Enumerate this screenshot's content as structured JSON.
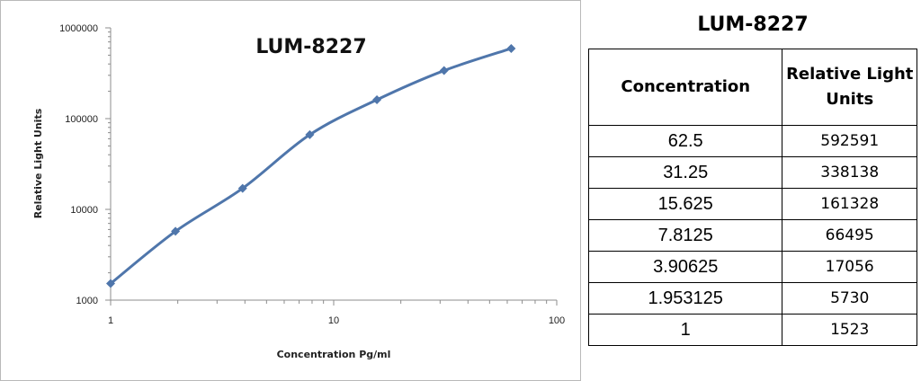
{
  "chart_data": {
    "type": "line",
    "title": "LUM-8227",
    "xlabel": "Concentration Pg/ml",
    "ylabel": "Relative Light Units",
    "x_scale": "log",
    "y_scale": "log",
    "xlim": [
      1,
      100
    ],
    "ylim": [
      1000,
      1000000
    ],
    "x_ticks": [
      "1",
      "10",
      "100"
    ],
    "y_ticks": [
      "1000",
      "10000",
      "100000",
      "1000000"
    ],
    "grid": false,
    "legend": "none",
    "series": [
      {
        "x": [
          1,
          1.953125,
          3.90625,
          7.8125,
          15.625,
          31.25,
          62.5
        ],
        "y": [
          1523,
          5730,
          17056,
          66495,
          161328,
          338138,
          592591
        ],
        "color": "#4f76ab",
        "marker": "diamond"
      }
    ]
  },
  "table": {
    "title": "LUM-8227",
    "headers": [
      "Concentration",
      "Relative Light Units"
    ],
    "rows": [
      [
        "62.5",
        "592591"
      ],
      [
        "31.25",
        "338138"
      ],
      [
        "15.625",
        "161328"
      ],
      [
        "7.8125",
        "66495"
      ],
      [
        "3.90625",
        "17056"
      ],
      [
        "1.953125",
        "5730"
      ],
      [
        "1",
        "1523"
      ]
    ]
  }
}
